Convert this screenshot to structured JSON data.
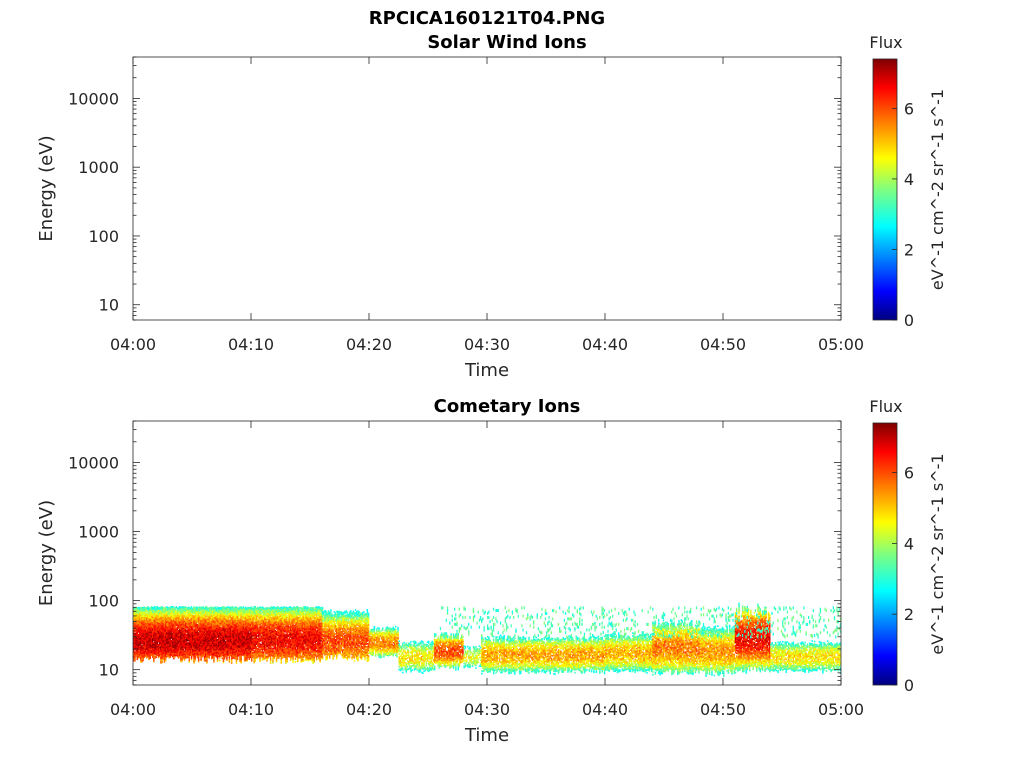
{
  "figure": {
    "title": "RPCICA160121T04.PNG"
  },
  "chart_data": [
    {
      "type": "heatmap",
      "title": "Solar Wind Ions",
      "xlabel": "Time",
      "ylabel": "Energy (eV)",
      "x_ticks": [
        "04:00",
        "04:10",
        "04:20",
        "04:30",
        "04:40",
        "04:50",
        "05:00"
      ],
      "x_range_minutes": [
        0,
        60
      ],
      "y_scale": "log",
      "y_ticks": [
        10,
        100,
        1000,
        10000
      ],
      "y_tick_labels": [
        "10",
        "100",
        "1000",
        "10000"
      ],
      "y_range": [
        6,
        40000
      ],
      "colorbar": {
        "title": "Flux",
        "label": "eV^-1 cm^-2 sr^-1 s^-1",
        "ticks": [
          "0",
          "2",
          "4",
          "6"
        ],
        "range": [
          0,
          7.4
        ]
      },
      "segments": []
    },
    {
      "type": "heatmap",
      "title": "Cometary Ions",
      "xlabel": "Time",
      "ylabel": "Energy (eV)",
      "x_ticks": [
        "04:00",
        "04:10",
        "04:20",
        "04:30",
        "04:40",
        "04:50",
        "05:00"
      ],
      "x_range_minutes": [
        0,
        60
      ],
      "y_scale": "log",
      "y_ticks": [
        10,
        100,
        1000,
        10000
      ],
      "y_tick_labels": [
        "10",
        "100",
        "1000",
        "10000"
      ],
      "y_range": [
        6,
        40000
      ],
      "colorbar": {
        "title": "Flux",
        "label": "eV^-1 cm^-2 sr^-1 s^-1",
        "ticks": [
          "0",
          "2",
          "4",
          "6"
        ],
        "range": [
          0,
          7.4
        ]
      },
      "segments": [
        {
          "t_start": 0,
          "t_end": 10,
          "e_low": 14,
          "e_high": 80,
          "peak_energy": 26,
          "peak_flux": 6.9,
          "fill": 0.97
        },
        {
          "t_start": 10,
          "t_end": 16,
          "e_low": 14,
          "e_high": 80,
          "peak_energy": 27,
          "peak_flux": 6.6,
          "fill": 0.95
        },
        {
          "t_start": 16,
          "t_end": 20,
          "e_low": 15,
          "e_high": 80,
          "peak_energy": 25,
          "peak_flux": 6.0,
          "fill": 0.9
        },
        {
          "t_start": 20,
          "t_end": 22.5,
          "e_low": 16,
          "e_high": 40,
          "peak_energy": 24,
          "peak_flux": 5.6,
          "fill": 0.9
        },
        {
          "t_start": 22.5,
          "t_end": 25.5,
          "e_low": 9,
          "e_high": 25,
          "peak_energy": 15,
          "peak_flux": 4.8,
          "fill": 0.7
        },
        {
          "t_start": 25.5,
          "t_end": 28,
          "e_low": 11,
          "e_high": 30,
          "peak_energy": 18,
          "peak_flux": 6.0,
          "fill": 0.85
        },
        {
          "t_start": 28,
          "t_end": 29.5,
          "e_low": 10,
          "e_high": 22,
          "peak_energy": 15,
          "peak_flux": 4.5,
          "fill": 0.55
        },
        {
          "t_start": 29.5,
          "t_end": 40,
          "e_low": 9,
          "e_high": 28,
          "peak_energy": 16,
          "peak_flux": 5.3,
          "fill": 0.82
        },
        {
          "t_start": 40,
          "t_end": 44,
          "e_low": 9,
          "e_high": 30,
          "peak_energy": 17,
          "peak_flux": 5.2,
          "fill": 0.82
        },
        {
          "t_start": 44,
          "t_end": 48,
          "e_low": 9,
          "e_high": 45,
          "peak_energy": 20,
          "peak_flux": 5.6,
          "fill": 0.85
        },
        {
          "t_start": 48,
          "t_end": 51,
          "e_low": 9,
          "e_high": 40,
          "peak_energy": 18,
          "peak_flux": 5.4,
          "fill": 0.85
        },
        {
          "t_start": 51,
          "t_end": 54,
          "e_low": 10,
          "e_high": 60,
          "peak_energy": 28,
          "peak_flux": 6.6,
          "fill": 0.9
        },
        {
          "t_start": 54,
          "t_end": 60,
          "e_low": 9,
          "e_high": 25,
          "peak_energy": 15,
          "peak_flux": 4.8,
          "fill": 0.8
        }
      ],
      "sparse_high_energy": {
        "t_start": 26,
        "t_end": 60,
        "e_low": 30,
        "e_high": 80,
        "flux": 3.3,
        "density": 0.08
      }
    }
  ]
}
